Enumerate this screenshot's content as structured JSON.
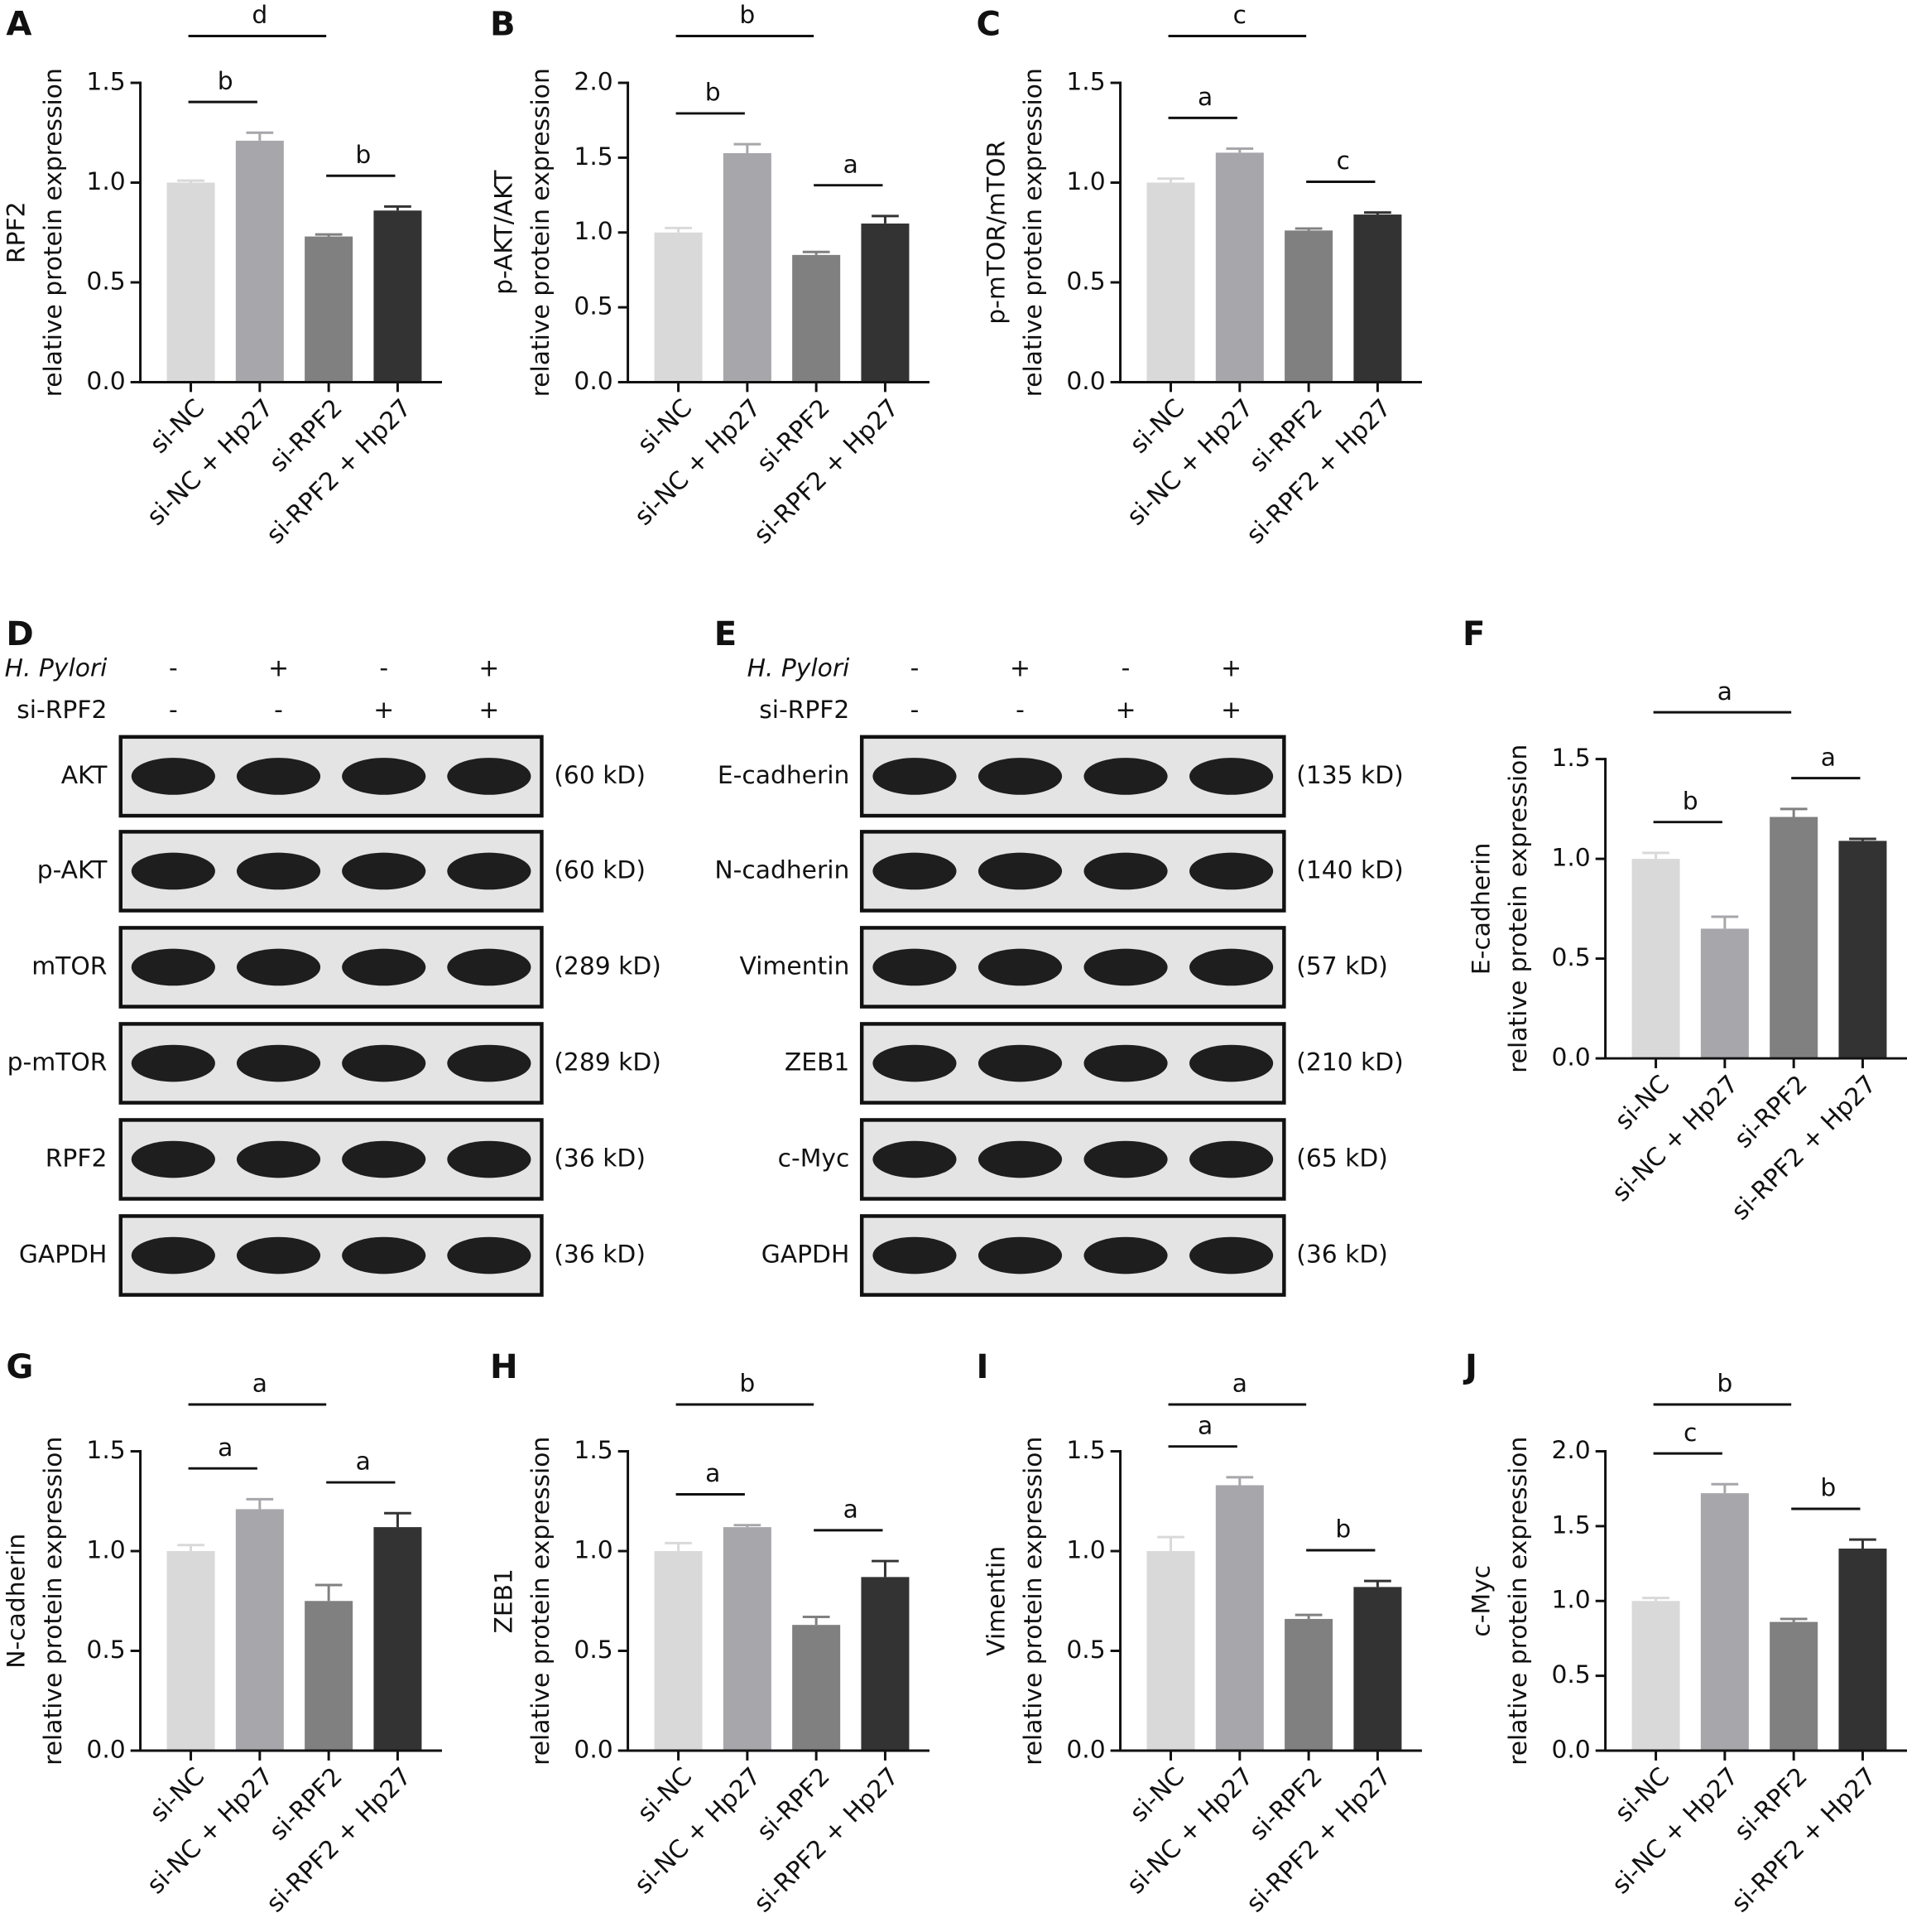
{
  "chart_data": [
    {
      "type": "bar",
      "panel": "A",
      "ylabel": [
        "RPF2",
        "relative protein expression"
      ],
      "categories": [
        "si-NC",
        "si-NC + Hp27",
        "si-RPF2",
        "si-RPF2 + Hp27"
      ],
      "values": [
        1.0,
        1.21,
        0.73,
        0.86
      ],
      "errors": [
        0.01,
        0.04,
        0.01,
        0.02
      ],
      "colors": [
        "#d9d9d9",
        "#a6a6ab",
        "#808080",
        "#333333"
      ],
      "ylim": [
        0,
        1.5
      ],
      "yticks": [
        {
          "value": 0,
          "label": "0.0"
        },
        {
          "value": 0.5,
          "label": "0.5"
        },
        {
          "value": 1,
          "label": "1.0"
        },
        {
          "value": 1.5,
          "label": "1.5"
        }
      ],
      "brackets": [
        {
          "label": "d",
          "pair": [
            0,
            2
          ]
        },
        {
          "label": "b",
          "pair": [
            0,
            1
          ]
        },
        {
          "label": "b",
          "pair": [
            2,
            3
          ]
        }
      ]
    },
    {
      "type": "bar",
      "panel": "B",
      "ylabel": [
        "p-AKT/AKT",
        "relative protein expression"
      ],
      "categories": [
        "si-NC",
        "si-NC + Hp27",
        "si-RPF2",
        "si-RPF2 + Hp27"
      ],
      "values": [
        1.0,
        1.53,
        0.85,
        1.06
      ],
      "errors": [
        0.03,
        0.06,
        0.02,
        0.05
      ],
      "colors": [
        "#d9d9d9",
        "#a6a6ab",
        "#808080",
        "#333333"
      ],
      "ylim": [
        0,
        2
      ],
      "yticks": [
        {
          "value": 0,
          "label": "0.0"
        },
        {
          "value": 0.5,
          "label": "0.5"
        },
        {
          "value": 1,
          "label": "1.0"
        },
        {
          "value": 1.5,
          "label": "1.5"
        },
        {
          "value": 2,
          "label": "2.0"
        }
      ],
      "brackets": [
        {
          "label": "b",
          "pair": [
            0,
            2
          ]
        },
        {
          "label": "b",
          "pair": [
            0,
            1
          ]
        },
        {
          "label": "a",
          "pair": [
            2,
            3
          ]
        }
      ]
    },
    {
      "type": "bar",
      "panel": "C",
      "ylabel": [
        "p-mTOR/mTOR",
        "relative protein expression"
      ],
      "categories": [
        "si-NC",
        "si-NC + Hp27",
        "si-RPF2",
        "si-RPF2 + Hp27"
      ],
      "values": [
        1.0,
        1.15,
        0.76,
        0.84
      ],
      "errors": [
        0.02,
        0.02,
        0.01,
        0.01
      ],
      "colors": [
        "#d9d9d9",
        "#a6a6ab",
        "#808080",
        "#333333"
      ],
      "ylim": [
        0,
        1.5
      ],
      "yticks": [
        {
          "value": 0,
          "label": "0.0"
        },
        {
          "value": 0.5,
          "label": "0.5"
        },
        {
          "value": 1,
          "label": "1.0"
        },
        {
          "value": 1.5,
          "label": "1.5"
        }
      ],
      "brackets": [
        {
          "label": "c",
          "pair": [
            0,
            2
          ]
        },
        {
          "label": "a",
          "pair": [
            0,
            1
          ]
        },
        {
          "label": "c",
          "pair": [
            2,
            3
          ]
        }
      ]
    },
    {
      "type": "bar",
      "panel": "F",
      "ylabel": [
        "E-cadherin",
        "relative protein expression"
      ],
      "categories": [
        "si-NC",
        "si-NC + Hp27",
        "si-RPF2",
        "si-RPF2 + Hp27"
      ],
      "values": [
        1.0,
        0.65,
        1.21,
        1.09
      ],
      "errors": [
        0.03,
        0.06,
        0.04,
        0.01
      ],
      "colors": [
        "#d9d9d9",
        "#a6a6ab",
        "#808080",
        "#333333"
      ],
      "ylim": [
        0,
        1.5
      ],
      "yticks": [
        {
          "value": 0,
          "label": "0.0"
        },
        {
          "value": 0.5,
          "label": "0.5"
        },
        {
          "value": 1,
          "label": "1.0"
        },
        {
          "value": 1.5,
          "label": "1.5"
        }
      ],
      "brackets": [
        {
          "label": "a",
          "pair": [
            0,
            2
          ]
        },
        {
          "label": "b",
          "pair": [
            0,
            1
          ]
        },
        {
          "label": "a",
          "pair": [
            2,
            3
          ]
        }
      ]
    },
    {
      "type": "bar",
      "panel": "G",
      "ylabel": [
        "N-cadherin",
        "relative protein expression"
      ],
      "categories": [
        "si-NC",
        "si-NC + Hp27",
        "si-RPF2",
        "si-RPF2 + Hp27"
      ],
      "values": [
        1.0,
        1.21,
        0.75,
        1.12
      ],
      "errors": [
        0.03,
        0.05,
        0.08,
        0.07
      ],
      "colors": [
        "#d9d9d9",
        "#a6a6ab",
        "#808080",
        "#333333"
      ],
      "ylim": [
        0,
        1.5
      ],
      "yticks": [
        {
          "value": 0,
          "label": "0.0"
        },
        {
          "value": 0.5,
          "label": "0.5"
        },
        {
          "value": 1,
          "label": "1.0"
        },
        {
          "value": 1.5,
          "label": "1.5"
        }
      ],
      "brackets": [
        {
          "label": "a",
          "pair": [
            0,
            2
          ]
        },
        {
          "label": "a",
          "pair": [
            0,
            1
          ]
        },
        {
          "label": "a",
          "pair": [
            2,
            3
          ]
        }
      ]
    },
    {
      "type": "bar",
      "panel": "H",
      "ylabel": [
        "ZEB1",
        "relative protein expression"
      ],
      "categories": [
        "si-NC",
        "si-NC + Hp27",
        "si-RPF2",
        "si-RPF2 + Hp27"
      ],
      "values": [
        1.0,
        1.12,
        0.63,
        0.87
      ],
      "errors": [
        0.04,
        0.01,
        0.04,
        0.08
      ],
      "colors": [
        "#d9d9d9",
        "#a6a6ab",
        "#808080",
        "#333333"
      ],
      "ylim": [
        0,
        1.5
      ],
      "yticks": [
        {
          "value": 0,
          "label": "0.0"
        },
        {
          "value": 0.5,
          "label": "0.5"
        },
        {
          "value": 1,
          "label": "1.0"
        },
        {
          "value": 1.5,
          "label": "1.5"
        }
      ],
      "brackets": [
        {
          "label": "b",
          "pair": [
            0,
            2
          ]
        },
        {
          "label": "a",
          "pair": [
            0,
            1
          ]
        },
        {
          "label": "a",
          "pair": [
            2,
            3
          ]
        }
      ]
    },
    {
      "type": "bar",
      "panel": "I",
      "ylabel": [
        "Vimentin",
        "relative protein expression"
      ],
      "categories": [
        "si-NC",
        "si-NC + Hp27",
        "si-RPF2",
        "si-RPF2 + Hp27"
      ],
      "values": [
        1.0,
        1.33,
        0.66,
        0.82
      ],
      "errors": [
        0.07,
        0.04,
        0.02,
        0.03
      ],
      "colors": [
        "#d9d9d9",
        "#a6a6ab",
        "#808080",
        "#333333"
      ],
      "ylim": [
        0,
        1.5
      ],
      "yticks": [
        {
          "value": 0,
          "label": "0.0"
        },
        {
          "value": 0.5,
          "label": "0.5"
        },
        {
          "value": 1,
          "label": "1.0"
        },
        {
          "value": 1.5,
          "label": "1.5"
        }
      ],
      "brackets": [
        {
          "label": "a",
          "pair": [
            0,
            2
          ]
        },
        {
          "label": "a",
          "pair": [
            0,
            1
          ]
        },
        {
          "label": "b",
          "pair": [
            2,
            3
          ]
        }
      ]
    },
    {
      "type": "bar",
      "panel": "J",
      "ylabel": [
        "c-Myc",
        "relative protein expression"
      ],
      "categories": [
        "si-NC",
        "si-NC + Hp27",
        "si-RPF2",
        "si-RPF2 + Hp27"
      ],
      "values": [
        1.0,
        1.72,
        0.86,
        1.35
      ],
      "errors": [
        0.02,
        0.06,
        0.02,
        0.06
      ],
      "colors": [
        "#d9d9d9",
        "#a6a6ab",
        "#808080",
        "#333333"
      ],
      "ylim": [
        0,
        2
      ],
      "yticks": [
        {
          "value": 0,
          "label": "0.0"
        },
        {
          "value": 0.5,
          "label": "0.5"
        },
        {
          "value": 1,
          "label": "1.0"
        },
        {
          "value": 1.5,
          "label": "1.5"
        },
        {
          "value": 2,
          "label": "2.0"
        }
      ],
      "brackets": [
        {
          "label": "b",
          "pair": [
            0,
            2
          ]
        },
        {
          "label": "c",
          "pair": [
            0,
            1
          ]
        },
        {
          "label": "b",
          "pair": [
            2,
            3
          ]
        }
      ]
    }
  ],
  "blots": [
    {
      "panel": "D",
      "conditions": [
        {
          "name": "H. Pylori",
          "signs": [
            "-",
            "+",
            "-",
            "+"
          ]
        },
        {
          "name": "si-RPF2",
          "signs": [
            "-",
            "-",
            "+",
            "+"
          ]
        }
      ],
      "rows": [
        {
          "protein": "AKT",
          "size": "(60 kD)"
        },
        {
          "protein": "p-AKT",
          "size": "(60 kD)"
        },
        {
          "protein": "mTOR",
          "size": "(289 kD)"
        },
        {
          "protein": "p-mTOR",
          "size": "(289 kD)"
        },
        {
          "protein": "RPF2",
          "size": "(36 kD)"
        },
        {
          "protein": "GAPDH",
          "size": "(36 kD)"
        }
      ]
    },
    {
      "panel": "E",
      "conditions": [
        {
          "name": "H. Pylori",
          "signs": [
            "-",
            "+",
            "-",
            "+"
          ]
        },
        {
          "name": "si-RPF2",
          "signs": [
            "-",
            "-",
            "+",
            "+"
          ]
        }
      ],
      "rows": [
        {
          "protein": "E-cadherin",
          "size": "(135 kD)"
        },
        {
          "protein": "N-cadherin",
          "size": "(140 kD)"
        },
        {
          "protein": "Vimentin",
          "size": "(57 kD)"
        },
        {
          "protein": "ZEB1",
          "size": "(210 kD)"
        },
        {
          "protein": "c-Myc",
          "size": "(65 kD)"
        },
        {
          "protein": "GAPDH",
          "size": "(36 kD)"
        }
      ]
    }
  ]
}
